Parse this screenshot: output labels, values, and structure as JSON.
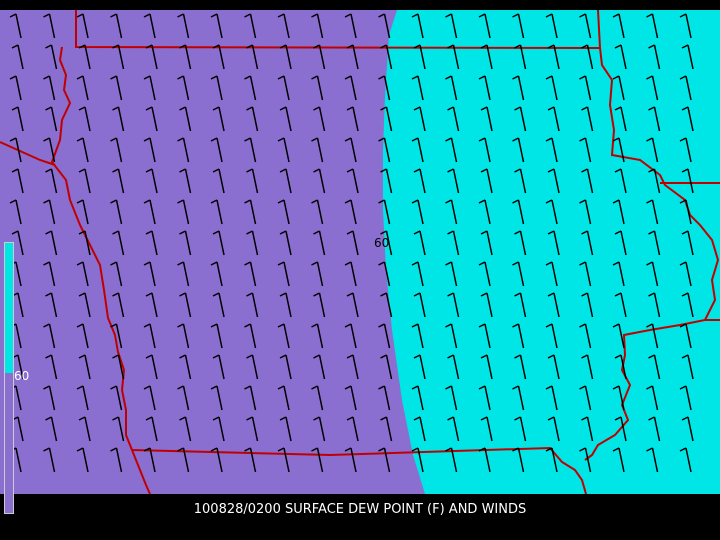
{
  "caption": "100828/0200 SURFACE DEW POINT (F) AND WINDS",
  "contour_label": "60",
  "legend": {
    "label": "60",
    "above_color": "#00e5e5",
    "below_color": "#8a6ed0"
  },
  "colors": {
    "dew_low": "#8a6ed0",
    "dew_high": "#00e5e5",
    "borders": "#c00000",
    "barbs": "#000000",
    "background": "#000000"
  },
  "wind_barbs": "uniform southerly winds with one full barb, drawn on a regular grid"
}
